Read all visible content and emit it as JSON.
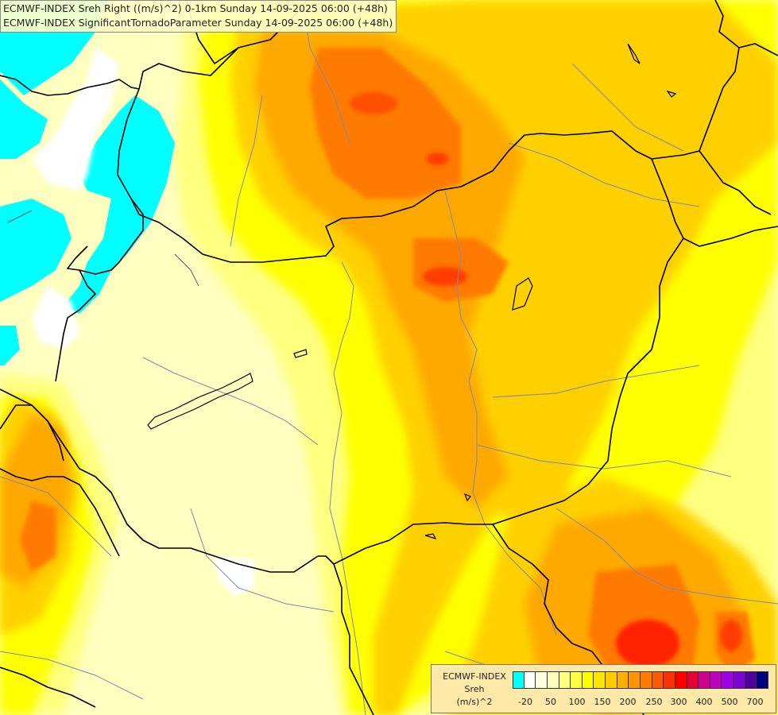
{
  "title_lines": [
    "ECMWF-INDEX Sreh Right ((m/s)^2) 0-1km Sunday 14-09-2025 06:00 (+48h)",
    "ECMWF-INDEX SignificantTornadoParameter Sunday 14-09-2025 06:00 (+48h)"
  ],
  "legend": {
    "line1": "ECMWF-INDEX",
    "line2": "Sreh",
    "line3": "(m/s)^2",
    "ticks": [
      "-20",
      "50",
      "100",
      "150",
      "200",
      "250",
      "300",
      "400",
      "500",
      "700"
    ],
    "colors": [
      "#00ffff",
      "#ffffff",
      "#ffffe0",
      "#ffffc0",
      "#ffff80",
      "#ffff40",
      "#ffff00",
      "#ffe600",
      "#ffcc00",
      "#ffb000",
      "#ff9600",
      "#ff7c00",
      "#ff5a00",
      "#ff3000",
      "#ff0000",
      "#e60032",
      "#d0008c",
      "#c000c0",
      "#a000e6",
      "#8000d8",
      "#5000a0",
      "#000080"
    ]
  },
  "colors": {
    "cyan": "#00ffff",
    "pale": "#ffffc0",
    "yellow": "#ffff00",
    "orange": "#ffa000",
    "red": "#ff2000",
    "border": "#000000",
    "river": "#7a8ab0"
  }
}
